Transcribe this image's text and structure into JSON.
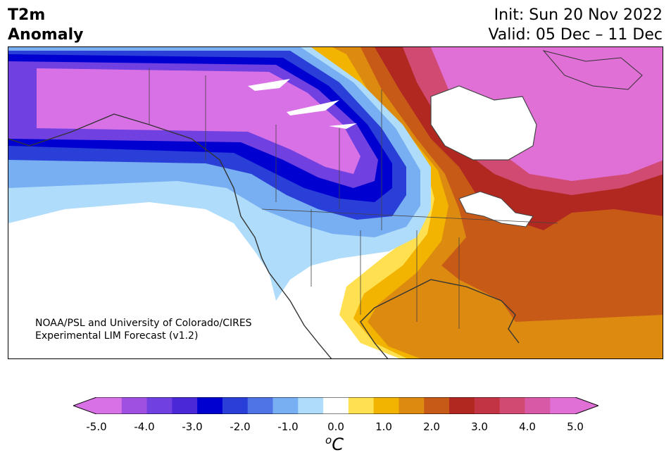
{
  "header": {
    "title_line1": "T2m",
    "title_line2": "Anomaly",
    "init": "Init: Sun 20 Nov 2022",
    "valid": "Valid: 05 Dec – 11 Dec"
  },
  "map": {
    "region": "North America",
    "credit_line1": "NOAA/PSL and University of Colorado/CIRES",
    "credit_line2": "Experimental LIM Forecast (v1.2)"
  },
  "colorbar": {
    "ticks": [
      "-5.0",
      "-4.0",
      "-3.0",
      "-2.0",
      "-1.0",
      "0.0",
      "1.0",
      "2.0",
      "3.0",
      "4.0",
      "5.0"
    ],
    "unit_base": "C",
    "unit_sup": "o",
    "colors": [
      "#d971e6",
      "#a050e0",
      "#7040e0",
      "#4a28d8",
      "#0000d0",
      "#2a3ed8",
      "#4e74e6",
      "#78aef2",
      "#aedcfa",
      "#ffffff",
      "#ffe050",
      "#f2b400",
      "#dc8a10",
      "#c85a18",
      "#b02820",
      "#c23444",
      "#d04a72",
      "#d85aa6",
      "#e070d6"
    ],
    "under_color": "#d971e6",
    "over_color": "#e070d6"
  }
}
